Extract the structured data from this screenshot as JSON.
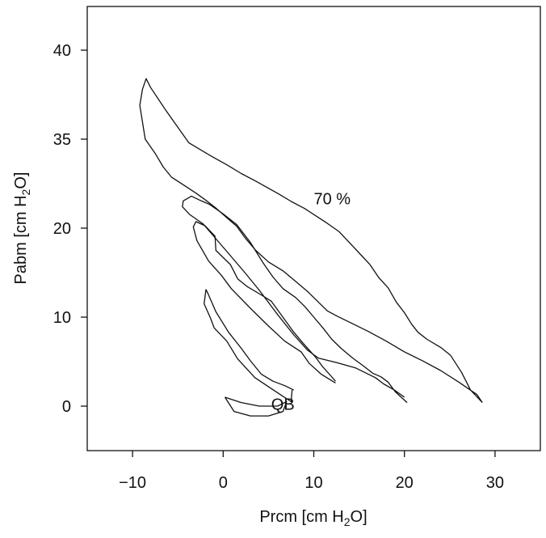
{
  "chart_data": {
    "type": "line",
    "xlabel": "Prcm [cm H₂O]",
    "ylabel": "Pabm [cm H₂O]",
    "xlim": [
      -15,
      35
    ],
    "ylim": [
      -5,
      45
    ],
    "x_ticks": [
      -10,
      0,
      10,
      20,
      30
    ],
    "x_tick_labels": [
      "−10",
      "0",
      "10",
      "20",
      "30"
    ],
    "y_ticks": [
      0,
      10,
      20,
      35,
      40
    ],
    "y_tick_labels": [
      "0",
      "10",
      "20",
      "35",
      "40"
    ],
    "grid": false,
    "annotations": [
      {
        "text": "70 %",
        "x": 10,
        "y": 24
      },
      {
        "text": "QB",
        "x": 5.3,
        "y": -0.4
      }
    ],
    "series": [
      {
        "values": [
          [
            0.2,
            1
          ],
          [
            2,
            0.4
          ],
          [
            4,
            0
          ],
          [
            6,
            0
          ],
          [
            7,
            0.5
          ],
          [
            6.6,
            -0.6
          ],
          [
            5,
            -1.1
          ],
          [
            3,
            -1.1
          ],
          [
            1.2,
            -0.6
          ],
          [
            0.2,
            1
          ]
        ]
      },
      {
        "values": [
          [
            7.8,
            1.8
          ],
          [
            6.8,
            2.3
          ],
          [
            5.5,
            2.8
          ],
          [
            4.2,
            3.6
          ],
          [
            3,
            5.1
          ],
          [
            2,
            6.5
          ],
          [
            0.6,
            8.3
          ],
          [
            -0.8,
            10.6
          ],
          [
            -1.7,
            12.7
          ],
          [
            -1.9,
            13.1
          ],
          [
            -2.1,
            11.5
          ],
          [
            -1.4,
            9.9
          ],
          [
            -1,
            8.8
          ],
          [
            0.4,
            7.3
          ],
          [
            1.6,
            5.3
          ],
          [
            3.5,
            3.2
          ],
          [
            6.3,
            1.3
          ],
          [
            7.5,
            0.5
          ],
          [
            7.6,
            1.8
          ]
        ]
      },
      {
        "values": [
          [
            12.4,
            2.8
          ],
          [
            11.8,
            3.5
          ],
          [
            11,
            4.4
          ],
          [
            10.2,
            5.5
          ],
          [
            8.8,
            7.1
          ],
          [
            7.8,
            8.3
          ],
          [
            6.8,
            9.7
          ],
          [
            5.3,
            11.8
          ],
          [
            4.2,
            12.5
          ],
          [
            2.7,
            13.4
          ],
          [
            1.6,
            14.3
          ],
          [
            0.8,
            15.9
          ],
          [
            -0.8,
            17.5
          ],
          [
            -0.9,
            19.1
          ],
          [
            -2,
            20.4
          ],
          [
            -3,
            21.1
          ],
          [
            -3.3,
            20.2
          ],
          [
            -2.9,
            18.6
          ],
          [
            -1.6,
            16.3
          ],
          [
            -0.2,
            14.7
          ],
          [
            0.9,
            13.2
          ],
          [
            3,
            11
          ],
          [
            5,
            9
          ],
          [
            6.8,
            7.3
          ],
          [
            8.6,
            6.1
          ],
          [
            9.5,
            4.8
          ],
          [
            10.8,
            3.6
          ],
          [
            12.4,
            2.6
          ]
        ]
      },
      {
        "values": [
          [
            20.3,
            0.4
          ],
          [
            19,
            1.6
          ],
          [
            18.2,
            2.7
          ],
          [
            17.4,
            3.3
          ],
          [
            16.5,
            3.7
          ],
          [
            15.5,
            4.5
          ],
          [
            14.3,
            5.4
          ],
          [
            13,
            6.5
          ],
          [
            12,
            7.5
          ],
          [
            11,
            8.8
          ],
          [
            10,
            10
          ],
          [
            9,
            11.2
          ],
          [
            8,
            12.2
          ],
          [
            6.6,
            13.2
          ],
          [
            5.5,
            14.5
          ],
          [
            4.4,
            16.1
          ],
          [
            3,
            18.4
          ],
          [
            1.5,
            20.6
          ],
          [
            0,
            22.4
          ],
          [
            -1.5,
            24
          ],
          [
            -2.7,
            24.8
          ],
          [
            -3.5,
            25.4
          ],
          [
            -4.4,
            24.6
          ],
          [
            -4.5,
            23.6
          ],
          [
            -3.7,
            22.3
          ],
          [
            -2.2,
            20.7
          ],
          [
            0.3,
            17.5
          ],
          [
            2.4,
            15
          ],
          [
            4,
            13
          ],
          [
            6,
            10.3
          ],
          [
            7.8,
            8
          ],
          [
            9.3,
            6.3
          ],
          [
            10.5,
            5.4
          ],
          [
            12.5,
            4.9
          ],
          [
            14.6,
            4.3
          ],
          [
            16.8,
            3.2
          ],
          [
            17.7,
            2.5
          ],
          [
            18.9,
            1.8
          ],
          [
            20,
            1
          ]
        ]
      },
      {
        "values": [
          [
            28.6,
            0.4
          ],
          [
            27.3,
            1.8
          ],
          [
            26.3,
            3.8
          ],
          [
            25.1,
            5.7
          ],
          [
            24,
            6.6
          ],
          [
            22.5,
            7.5
          ],
          [
            21.5,
            8.3
          ],
          [
            20.8,
            9.2
          ],
          [
            20,
            10.5
          ],
          [
            19.1,
            11.7
          ],
          [
            18.2,
            13.3
          ],
          [
            17.2,
            14.4
          ],
          [
            16.2,
            15.9
          ],
          [
            15.2,
            17
          ],
          [
            14,
            18.3
          ],
          [
            12.8,
            19.6
          ],
          [
            11.5,
            20.8
          ],
          [
            10.2,
            22.1
          ],
          [
            9,
            23.3
          ],
          [
            7.5,
            24.5
          ],
          [
            6.2,
            25.7
          ],
          [
            4.8,
            26.9
          ],
          [
            3.5,
            28
          ],
          [
            2,
            29.2
          ],
          [
            0.5,
            30.6
          ],
          [
            -1.5,
            32.3
          ],
          [
            -3.8,
            34.4
          ],
          [
            -6.3,
            36.6
          ],
          [
            -8,
            37.9
          ],
          [
            -8.5,
            38.4
          ],
          [
            -8.9,
            37.8
          ],
          [
            -9.2,
            36.9
          ],
          [
            -8.6,
            35
          ],
          [
            -7.5,
            32.6
          ],
          [
            -6.6,
            30.3
          ],
          [
            -5.7,
            28.6
          ],
          [
            -4.5,
            27.4
          ],
          [
            -3,
            25.9
          ],
          [
            -2,
            24.8
          ],
          [
            -0.9,
            23.5
          ],
          [
            0.3,
            21.9
          ],
          [
            1.5,
            20.3
          ],
          [
            2.5,
            18.8
          ],
          [
            3.6,
            17.5
          ],
          [
            5,
            16.2
          ],
          [
            6.6,
            15.2
          ],
          [
            7.9,
            14.1
          ],
          [
            9.3,
            12.9
          ],
          [
            10.5,
            11.7
          ],
          [
            11.5,
            10.7
          ],
          [
            12.6,
            10.1
          ],
          [
            14,
            9.4
          ],
          [
            16,
            8.4
          ],
          [
            18,
            7.3
          ],
          [
            20,
            6.1
          ],
          [
            22,
            5.1
          ],
          [
            24,
            4
          ],
          [
            26,
            2.7
          ],
          [
            28,
            1.3
          ],
          [
            28.6,
            0.4
          ]
        ]
      }
    ]
  }
}
